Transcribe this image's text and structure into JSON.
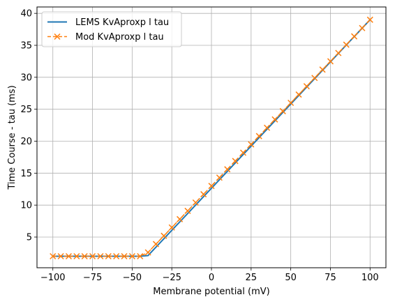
{
  "chart_data": {
    "type": "line",
    "xlabel": "Membrane potential (mV)",
    "ylabel": "Time Course - tau (ms)",
    "xlim": [
      -110,
      110
    ],
    "ylim": [
      0.2,
      41
    ],
    "x_ticks": [
      -100,
      -75,
      -50,
      -25,
      0,
      25,
      50,
      75,
      100
    ],
    "x_tick_labels": [
      "−100",
      "−75",
      "−50",
      "−25",
      "0",
      "25",
      "50",
      "75",
      "100"
    ],
    "y_ticks": [
      5,
      10,
      15,
      20,
      25,
      30,
      35,
      40
    ],
    "y_tick_labels": [
      "5",
      "10",
      "15",
      "20",
      "25",
      "30",
      "35",
      "40"
    ],
    "grid": true,
    "legend_position": "top-left",
    "series": [
      {
        "name": "LEMS KvAproxp l tau",
        "color": "#1f77b4",
        "style": "solid",
        "marker": "none",
        "x": [
          -100,
          -45,
          -40,
          100
        ],
        "y": [
          2,
          2,
          2.1,
          39
        ]
      },
      {
        "name": "Mod KvAproxp l tau",
        "color": "#ff7f0e",
        "style": "dashed",
        "marker": "x",
        "x": [
          -100,
          -95,
          -90,
          -85,
          -80,
          -75,
          -70,
          -65,
          -60,
          -55,
          -50,
          -45,
          -40,
          -35,
          -30,
          -25,
          -20,
          -15,
          -10,
          -5,
          0,
          5,
          10,
          15,
          20,
          25,
          30,
          35,
          40,
          45,
          50,
          55,
          60,
          65,
          70,
          75,
          80,
          85,
          90,
          95,
          100
        ],
        "y": [
          2,
          2,
          2,
          2,
          2,
          2,
          2,
          2,
          2,
          2,
          2,
          2,
          2.6,
          3.9,
          5.2,
          6.5,
          7.8,
          9.1,
          10.4,
          11.7,
          13,
          14.3,
          15.6,
          16.9,
          18.2,
          19.5,
          20.8,
          22.1,
          23.4,
          24.7,
          26,
          27.3,
          28.6,
          29.9,
          31.2,
          32.5,
          33.8,
          35.1,
          36.4,
          37.7,
          39
        ]
      }
    ]
  }
}
